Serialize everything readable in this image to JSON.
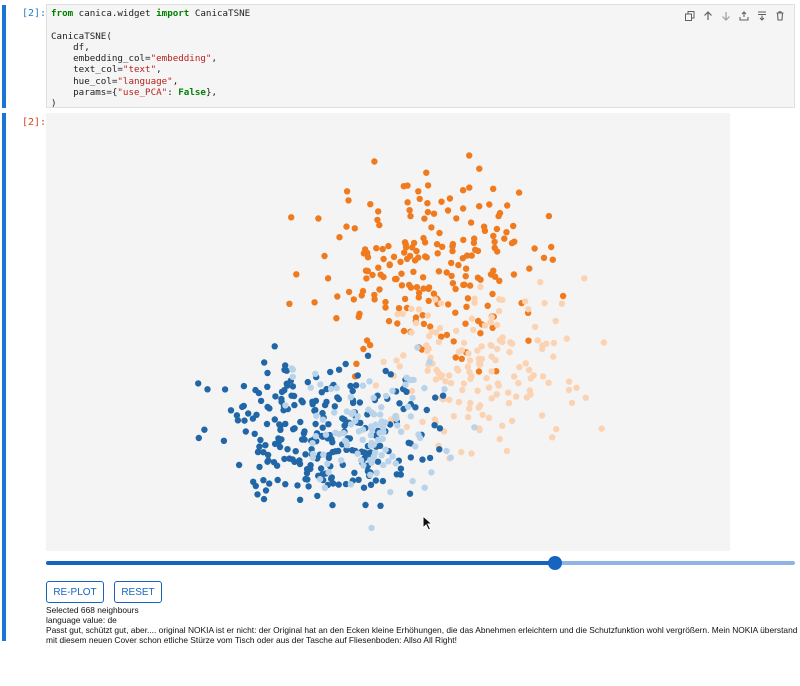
{
  "cell1": {
    "prompt": "[2]:",
    "code": {
      "l1_from": "from",
      "l1_mod": " canica.widget ",
      "l1_import": "import",
      "l1_name": " CanicaTSNE",
      "l3": "CanicaTSNE(",
      "l4": "    df,",
      "l5_pre": "    embedding_col=",
      "l5_str": "\"embedding\"",
      "l5_post": ",",
      "l6_pre": "    text_col=",
      "l6_str": "\"text\"",
      "l6_post": ",",
      "l7_pre": "    hue_col=",
      "l7_str": "\"language\"",
      "l7_post": ",",
      "l8_pre": "    params={",
      "l8_str": "\"use_PCA\"",
      "l8_mid": ": ",
      "l8_kw": "False",
      "l8_post": "},",
      "l9": ")"
    },
    "toolbar": [
      "copy-icon",
      "arrow-up-icon",
      "arrow-down-icon",
      "insert-above-icon",
      "insert-below-icon",
      "delete-icon"
    ]
  },
  "cell2": {
    "prompt": "[2]:"
  },
  "chart_data": {
    "type": "scatter",
    "title": "",
    "xlabel": "",
    "ylabel": "",
    "legend": "none",
    "series": [
      {
        "name": "dark-orange",
        "color": "#f07a1e",
        "n": 210
      },
      {
        "name": "light-orange",
        "color": "#fbd3b3",
        "n": 160
      },
      {
        "name": "dark-blue",
        "color": "#2166a6",
        "n": 250
      },
      {
        "name": "light-blue",
        "color": "#b9d3ea",
        "n": 110
      }
    ],
    "notes": "Point cloud from a t-SNE projection; orange hues occupy upper-right region, blue hues lower-left region."
  },
  "slider": {
    "value": 0.68
  },
  "buttons": {
    "replot": "RE-PLOT",
    "reset": "RESET"
  },
  "info": {
    "selected": "Selected 668 neighbours",
    "language": "language value: de",
    "text": "Passt gut, schützt gut, aber.... original NOKIA ist er nicht: der Original hat an den Ecken kleine Erhöhungen, die das Abnehmen erleichtern und die Schutzfunktion wohl vergrößern. Mein NOKIA überstand mit diesem neuen Cover schon etliche Stürze vom Tisch oder aus der Tasche auf Fliesenboden: Allso All Right!"
  }
}
